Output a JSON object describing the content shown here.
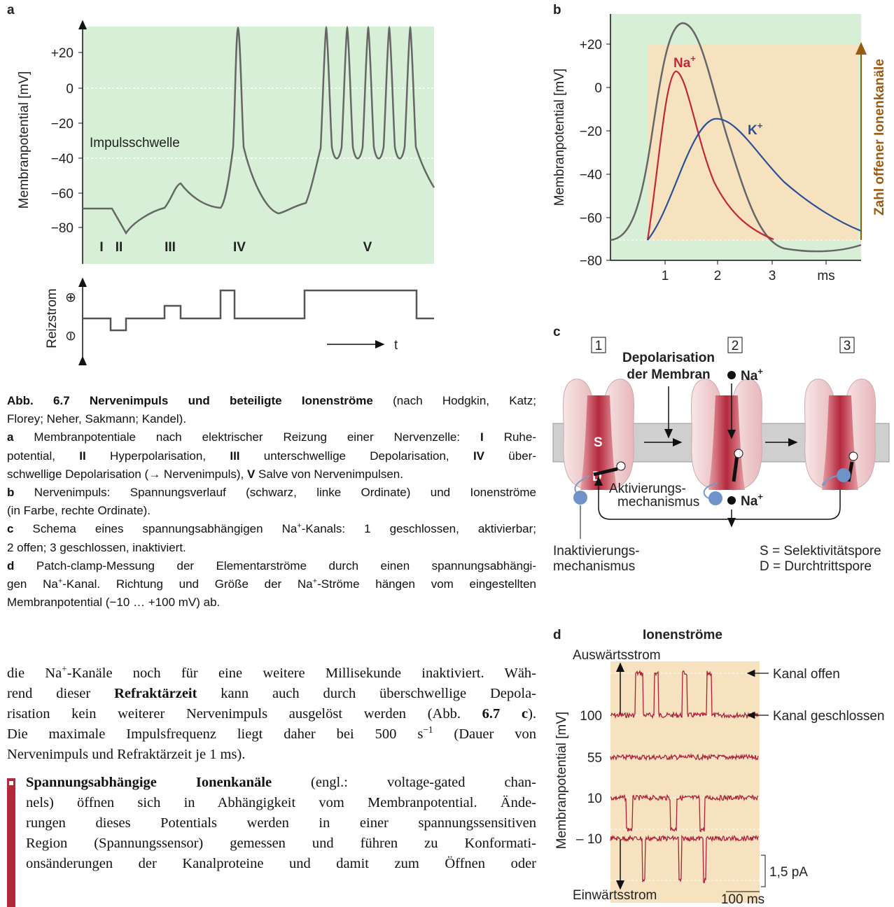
{
  "figure": {
    "panel_a": {
      "label": "a",
      "y_axis_label": "Membranpotential [mV]",
      "y_ticks": [
        "+20",
        "0",
        "−20",
        "−40",
        "−60",
        "−80"
      ],
      "threshold_label": "Impulsschwelle",
      "phases": [
        "I",
        "II",
        "III",
        "IV",
        "V"
      ],
      "stimulus_label": "Reizstrom",
      "stimulus_plus": "⊕",
      "stimulus_minus": "⊖",
      "time_label": "t"
    },
    "panel_b": {
      "label": "b",
      "y_axis_label": "Membranpotential [mV]",
      "y_ticks": [
        "+20",
        "0",
        "−20",
        "−40",
        "−60",
        "−80"
      ],
      "x_ticks": [
        "1",
        "2",
        "3",
        "ms"
      ],
      "na_label": {
        "base": "Na",
        "sup": "+"
      },
      "k_label": {
        "base": "K",
        "sup": "+"
      },
      "right_axis_label": "Zahl offener Ionenkanäle"
    },
    "panel_c": {
      "label": "c",
      "steps": [
        "1",
        "2",
        "3"
      ],
      "depolarisation": [
        "Depolarisation",
        "der Membran"
      ],
      "s": "S",
      "d": "D",
      "plus": "⊕",
      "activation": [
        "Aktivierungs-",
        "mechanismus"
      ],
      "na_out": {
        "base": "Na",
        "sup": "+"
      },
      "na_in": {
        "base": "Na",
        "sup": "+"
      },
      "inactivation": [
        "Inaktivierungs-",
        "mechanismus"
      ],
      "legend": [
        "S = Selektivitätspore",
        "D = Durchtrittspore"
      ]
    },
    "panel_d": {
      "label": "d",
      "title": "Ionenströme",
      "outward": "Auswärtsstrom",
      "inward": "Einwärtsstrom",
      "y_axis_label": "Membranpotential [mV]",
      "potentials": [
        "100",
        "55",
        "10",
        "– 10"
      ],
      "open": "Kanal offen",
      "closed": "Kanal geschlossen",
      "scale_current": "1,5 pA",
      "scale_time": "100 ms"
    }
  },
  "caption": {
    "lines": [
      {
        "runs": [
          {
            "text": "Abb. 6.7 Nervenimpuls und beteiligte Ionenströme",
            "bold": true
          },
          {
            "text": " (nach Hodgkin, Katz;"
          }
        ],
        "justify": true
      },
      {
        "runs": [
          {
            "text": "Florey; Neher, Sakmann; Kandel)."
          }
        ]
      },
      {
        "runs": [
          {
            "text": "a",
            "bold": true
          },
          {
            "text": " Membranpotentiale nach elektrischer Reizung einer Nervenzelle: "
          },
          {
            "text": "I",
            "bold": true
          },
          {
            "text": " Ruhe-"
          }
        ],
        "justify": true
      },
      {
        "runs": [
          {
            "text": "potential, "
          },
          {
            "text": "II",
            "bold": true
          },
          {
            "text": " Hyperpolarisation, "
          },
          {
            "text": "III",
            "bold": true
          },
          {
            "text": " unterschwellige Depolarisation, "
          },
          {
            "text": "IV",
            "bold": true
          },
          {
            "text": " über-"
          }
        ],
        "justify": true
      },
      {
        "runs": [
          {
            "text": "schwellige Depolarisation (→ Nervenimpuls), "
          },
          {
            "text": "V",
            "bold": true
          },
          {
            "text": " Salve von Nervenimpulsen."
          }
        ]
      },
      {
        "runs": [
          {
            "text": "b",
            "bold": true
          },
          {
            "text": " Nervenimpuls: Spannungsverlauf (schwarz, linke Ordinate) und Ionenströme"
          }
        ],
        "justify": true
      },
      {
        "runs": [
          {
            "text": "(in Farbe, rechte Ordinate)."
          }
        ]
      },
      {
        "runs": [
          {
            "text": "c",
            "bold": true
          },
          {
            "text": " Schema eines spannungsabhängigen Na"
          },
          {
            "text": "+",
            "sup": true
          },
          {
            "text": "-Kanals: 1 geschlossen, aktivierbar;"
          }
        ],
        "justify": true
      },
      {
        "runs": [
          {
            "text": "2 offen; 3 geschlossen, inaktiviert."
          }
        ]
      },
      {
        "runs": [
          {
            "text": "d",
            "bold": true
          },
          {
            "text": " Patch-clamp-Messung der Elementarströme durch einen spannungsabhängi-"
          }
        ],
        "justify": true
      },
      {
        "runs": [
          {
            "text": "gen Na"
          },
          {
            "text": "+",
            "sup": true
          },
          {
            "text": "-Kanal. Richtung und Größe der Na"
          },
          {
            "text": "+",
            "sup": true
          },
          {
            "text": "-Ströme hängen vom eingestellten"
          }
        ],
        "justify": true
      },
      {
        "runs": [
          {
            "text": "Membranpotential (−10 … +100 mV) ab."
          }
        ]
      }
    ]
  },
  "body": {
    "paragraphs": [
      {
        "lines": [
          {
            "runs": [
              {
                "text": "die Na"
              },
              {
                "text": "+",
                "sup": true
              },
              {
                "text": "-Kanäle noch für eine weitere Millisekunde inaktiviert. Wäh-"
              }
            ],
            "justify": true
          },
          {
            "runs": [
              {
                "text": "rend dieser "
              },
              {
                "text": "Refraktärzeit",
                "bold": true
              },
              {
                "text": " kann auch durch überschwellige Depola-"
              }
            ],
            "justify": true
          },
          {
            "runs": [
              {
                "text": "risation kein weiterer Nervenimpuls ausgelöst werden (Abb. "
              },
              {
                "text": "6.7 c",
                "bold": true
              },
              {
                "text": ")."
              }
            ],
            "justify": true
          },
          {
            "runs": [
              {
                "text": "Die maximale Impulsfrequenz liegt daher bei 500 s"
              },
              {
                "text": "−1",
                "sup": true
              },
              {
                "text": " (Dauer von"
              }
            ],
            "justify": true
          },
          {
            "runs": [
              {
                "text": "Nervenimpuls und Refraktärzeit je 1 ms)."
              }
            ]
          }
        ]
      },
      {
        "lines": [
          {
            "runs": [
              {
                "text": "Spannungsabhängige Ionenkanäle",
                "bold": true
              },
              {
                "text": " (engl.: voltage-gated chan-"
              }
            ],
            "justify": true
          },
          {
            "runs": [
              {
                "text": "nels) öffnen sich in Abhängigkeit vom Membranpotential. Ände-"
              }
            ],
            "justify": true
          },
          {
            "runs": [
              {
                "text": "rungen dieses Potentials werden in einer spannungssensitiven"
              }
            ],
            "justify": true
          },
          {
            "runs": [
              {
                "text": "Region (Spannungssensor) gemessen und führen zu Konformati-"
              }
            ],
            "justify": true
          },
          {
            "runs": [
              {
                "text": "onsänderungen der Kanalproteine und damit zum Öffnen oder"
              }
            ],
            "justify": true
          }
        ]
      }
    ]
  }
}
